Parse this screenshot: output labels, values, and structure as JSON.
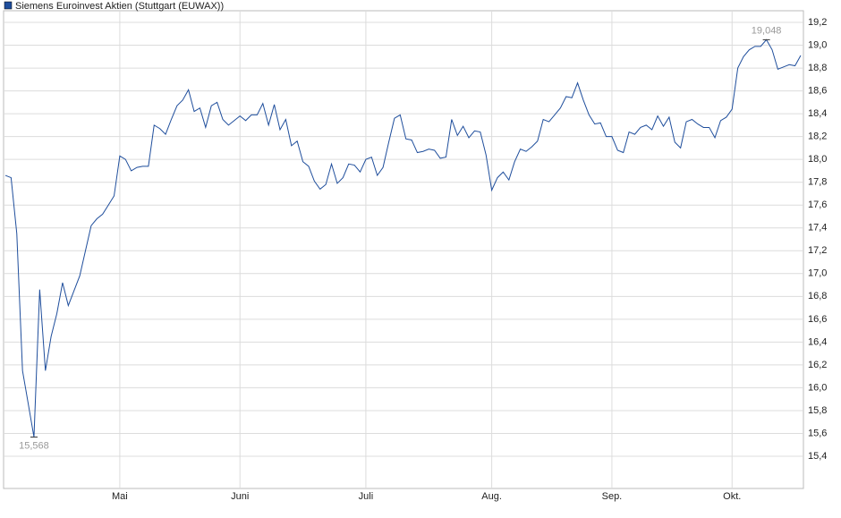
{
  "chart_data": {
    "type": "line",
    "series": [
      {
        "name": "Siemens Euroinvest Aktien (Stuttgart (EUWAX))",
        "color": "#1f4e9c",
        "values": [
          17.86,
          17.84,
          17.35,
          16.15,
          15.86,
          15.568,
          16.86,
          16.15,
          16.45,
          16.65,
          16.92,
          16.72,
          16.85,
          16.98,
          17.2,
          17.42,
          17.48,
          17.52,
          17.6,
          17.68,
          18.03,
          18.0,
          17.9,
          17.93,
          17.94,
          17.94,
          18.3,
          18.27,
          18.22,
          18.35,
          18.47,
          18.52,
          18.61,
          18.42,
          18.45,
          18.28,
          18.47,
          18.5,
          18.35,
          18.3,
          18.34,
          18.38,
          18.34,
          18.39,
          18.39,
          18.49,
          18.3,
          18.48,
          18.26,
          18.35,
          18.12,
          18.16,
          17.98,
          17.94,
          17.81,
          17.74,
          17.78,
          17.96,
          17.79,
          17.84,
          17.96,
          17.95,
          17.89,
          18.0,
          18.02,
          17.86,
          17.93,
          18.15,
          18.36,
          18.39,
          18.18,
          18.17,
          18.06,
          18.07,
          18.09,
          18.08,
          18.01,
          18.02,
          18.35,
          18.21,
          18.29,
          18.19,
          18.25,
          18.24,
          18.04,
          17.73,
          17.84,
          17.89,
          17.82,
          17.98,
          18.09,
          18.07,
          18.11,
          18.16,
          18.35,
          18.33,
          18.39,
          18.45,
          18.55,
          18.54,
          18.67,
          18.52,
          18.39,
          18.31,
          18.32,
          18.2,
          18.2,
          18.08,
          18.06,
          18.24,
          18.22,
          18.28,
          18.3,
          18.26,
          18.38,
          18.29,
          18.37,
          18.15,
          18.1,
          18.33,
          18.35,
          18.31,
          18.28,
          18.28,
          18.19,
          18.34,
          18.37,
          18.44,
          18.8,
          18.9,
          18.96,
          18.99,
          18.99,
          19.048,
          18.96,
          18.79,
          18.81,
          18.83,
          18.82,
          18.91
        ],
        "value_labels": [
          null,
          null,
          null,
          null,
          null,
          "15,568",
          null,
          null,
          null,
          null,
          null,
          null,
          null,
          null,
          null,
          null,
          null,
          null,
          null,
          null,
          null,
          null,
          null,
          null,
          null,
          null,
          null,
          null,
          null,
          null,
          null,
          null,
          null,
          null,
          null,
          null,
          null,
          null,
          null,
          null,
          null,
          null,
          null,
          null,
          null,
          null,
          null,
          null,
          null,
          null,
          null,
          null,
          null,
          null,
          null,
          null,
          null,
          null,
          null,
          null,
          null,
          null,
          null,
          null,
          null,
          null,
          null,
          null,
          null,
          null,
          null,
          null,
          null,
          null,
          null,
          null,
          null,
          null,
          null,
          null,
          null,
          null,
          null,
          null,
          null,
          null,
          null,
          null,
          null,
          null,
          null,
          null,
          null,
          null,
          null,
          null,
          null,
          null,
          null,
          null,
          null,
          null,
          null,
          null,
          null,
          null,
          null,
          null,
          null,
          null,
          null,
          null,
          null,
          null,
          null,
          null,
          null,
          null,
          null,
          null,
          null,
          null,
          null,
          null,
          null,
          null,
          null,
          null,
          null,
          null,
          null,
          null,
          null,
          "19,048",
          null,
          null,
          null,
          null,
          null,
          null
        ]
      }
    ],
    "xlim": [
      -0.31,
      139.47
    ],
    "xticks": [
      {
        "value": 20,
        "label": "Mai"
      },
      {
        "value": 41,
        "label": "Juni"
      },
      {
        "value": 63,
        "label": "Juli"
      },
      {
        "value": 85,
        "label": "Aug."
      },
      {
        "value": 106,
        "label": "Sep."
      },
      {
        "value": 127,
        "label": "Okt."
      }
    ],
    "ylim": [
      15.118,
      19.302
    ],
    "yticks": [
      {
        "value": 15.4,
        "label": "15,4"
      },
      {
        "value": 15.6,
        "label": "15,6"
      },
      {
        "value": 15.8,
        "label": "15,8"
      },
      {
        "value": 16.0,
        "label": "16,0"
      },
      {
        "value": 16.2,
        "label": "16,2"
      },
      {
        "value": 16.4,
        "label": "16,4"
      },
      {
        "value": 16.6,
        "label": "16,6"
      },
      {
        "value": 16.8,
        "label": "16,8"
      },
      {
        "value": 17.0,
        "label": "17,0"
      },
      {
        "value": 17.2,
        "label": "17,2"
      },
      {
        "value": 17.4,
        "label": "17,4"
      },
      {
        "value": 17.6,
        "label": "17,6"
      },
      {
        "value": 17.8,
        "label": "17,8"
      },
      {
        "value": 18.0,
        "label": "18,0"
      },
      {
        "value": 18.2,
        "label": "18,2"
      },
      {
        "value": 18.4,
        "label": "18,4"
      },
      {
        "value": 18.6,
        "label": "18,6"
      },
      {
        "value": 18.8,
        "label": "18,8"
      },
      {
        "value": 19.0,
        "label": "19,0"
      },
      {
        "value": 19.2,
        "label": "19,2"
      }
    ],
    "grid": true
  }
}
